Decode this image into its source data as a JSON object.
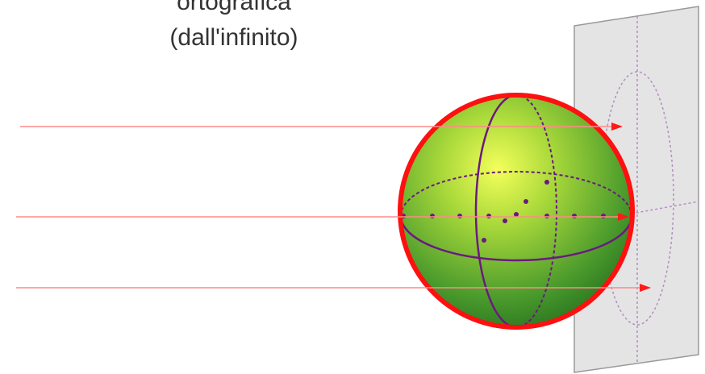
{
  "title": {
    "line1": "ortografica",
    "line2": "(dall'infinito)"
  }
}
